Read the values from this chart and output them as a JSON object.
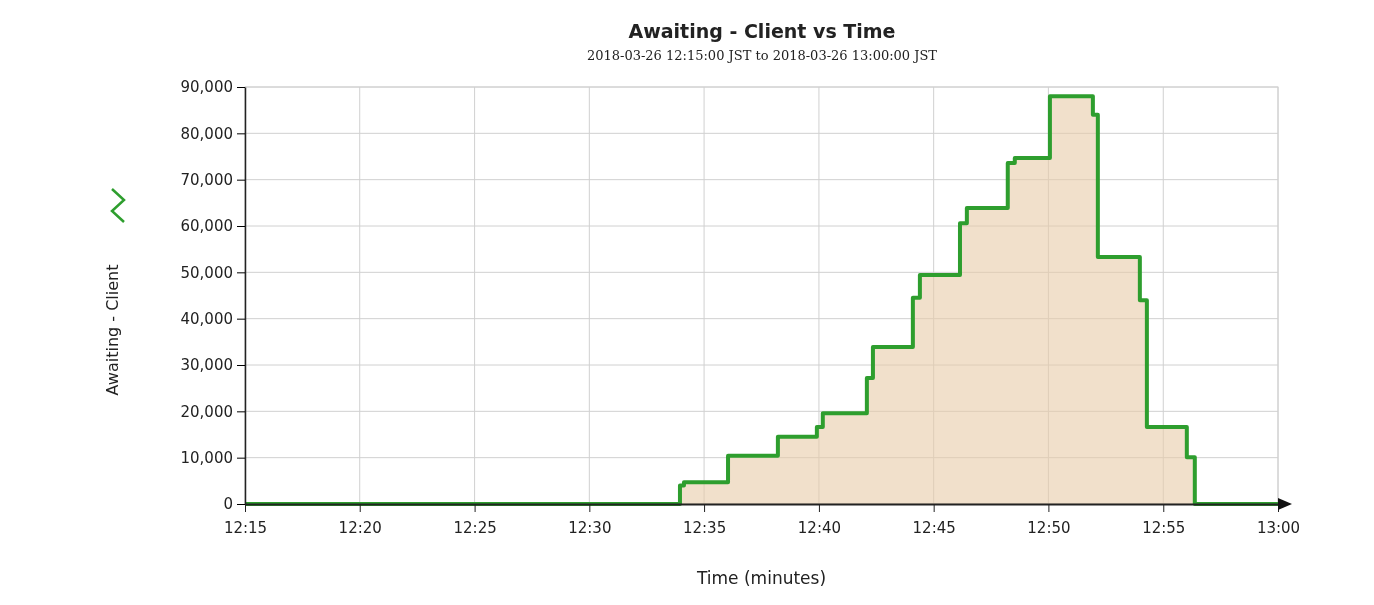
{
  "chart_data": {
    "type": "step",
    "title": "Awaiting - Client vs Time",
    "subtitle": "2018-03-26 12:15:00 JST to 2018-03-26 13:00:00 JST",
    "xlabel": "Time (minutes)",
    "ylabel": "Awaiting - Client",
    "x": [
      12.25,
      12.5658,
      12.5687,
      12.6007,
      12.6369,
      12.6652,
      12.6695,
      12.7015,
      12.7059,
      12.7349,
      12.74,
      12.7691,
      12.7741,
      12.8038,
      12.8089,
      12.8344,
      12.8656,
      12.8692,
      12.8997,
      12.9048,
      12.9338,
      12.9396,
      13.0
    ],
    "series": [
      {
        "color": "#2e9e2e",
        "values": [
          0,
          4000,
          4700,
          10400,
          14500,
          16600,
          19600,
          27200,
          33900,
          44500,
          49400,
          60600,
          63900,
          73600,
          74700,
          88000,
          84000,
          53300,
          44000,
          16600,
          10100,
          0,
          0
        ]
      }
    ],
    "xlim": [
      12.25,
      13.0
    ],
    "xticks": [
      {
        "value": 12.25,
        "label": "12:15"
      },
      {
        "value": 12.3333,
        "label": "12:20"
      },
      {
        "value": 12.4167,
        "label": "12:25"
      },
      {
        "value": 12.5,
        "label": "12:30"
      },
      {
        "value": 12.5833,
        "label": "12:35"
      },
      {
        "value": 12.6667,
        "label": "12:40"
      },
      {
        "value": 12.75,
        "label": "12:45"
      },
      {
        "value": 12.8333,
        "label": "12:50"
      },
      {
        "value": 12.9167,
        "label": "12:55"
      },
      {
        "value": 13.0,
        "label": "13:00"
      }
    ],
    "ylim": [
      0,
      90000
    ],
    "yticks": [
      {
        "value": 0,
        "label": "0"
      },
      {
        "value": 10000,
        "label": "10,000"
      },
      {
        "value": 20000,
        "label": "20,000"
      },
      {
        "value": 30000,
        "label": "30,000"
      },
      {
        "value": 40000,
        "label": "40,000"
      },
      {
        "value": 50000,
        "label": "50,000"
      },
      {
        "value": 60000,
        "label": "60,000"
      },
      {
        "value": 70000,
        "label": "70,000"
      },
      {
        "value": 80000,
        "label": "80,000"
      },
      {
        "value": 90000,
        "label": "90,000"
      }
    ],
    "grid": true
  }
}
